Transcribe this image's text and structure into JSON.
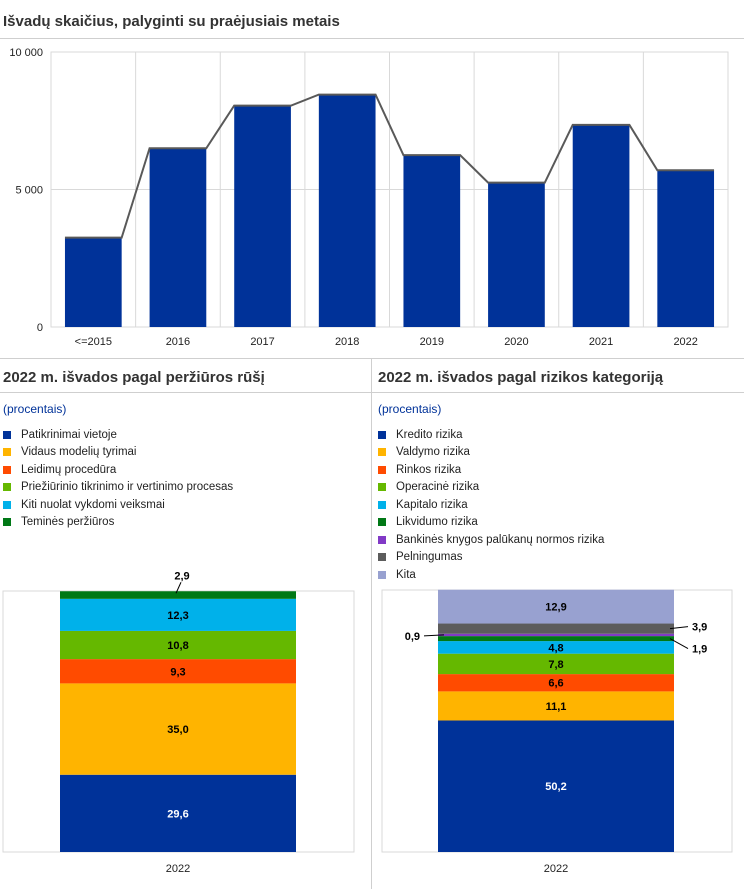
{
  "top_chart": {
    "title": "Išvadų skaičius, palyginti su praėjusiais metais",
    "chart_data": {
      "type": "bar",
      "categories": [
        "<=2015",
        "2016",
        "2017",
        "2018",
        "2019",
        "2020",
        "2021",
        "2022"
      ],
      "values": [
        3250,
        6500,
        8050,
        8450,
        6250,
        5250,
        7350,
        5700
      ],
      "ylim": [
        0,
        10000
      ],
      "yticks": [
        "0",
        "5 000",
        "10 000"
      ],
      "ytick_values": [
        0,
        5000,
        10000
      ],
      "grid": true,
      "bar_color": "#003299",
      "line_color": "#595959"
    }
  },
  "left_chart": {
    "title": "2022 m. išvados pagal peržiūros rūšį",
    "subtitle": "(procentais)",
    "chart_data": {
      "type": "bar",
      "stacked": true,
      "categories": [
        "2022"
      ],
      "ylim": [
        0,
        100
      ],
      "series": [
        {
          "name": "Patikrinimai vietoje",
          "value": 29.6,
          "label": "29,6",
          "color": "#003299"
        },
        {
          "name": "Vidaus modelių tyrimai",
          "value": 35.0,
          "label": "35,0",
          "color": "#FFB400"
        },
        {
          "name": "Leidimų procedūra",
          "value": 9.3,
          "label": "9,3",
          "color": "#FF4B00"
        },
        {
          "name": "Priežiūrinio tikrinimo ir vertinimo procesas",
          "value": 10.8,
          "label": "10,8",
          "color": "#65B800"
        },
        {
          "name": "Kiti nuolat vykdomi veiksmai",
          "value": 12.3,
          "label": "12,3",
          "color": "#00B1EA"
        },
        {
          "name": "Teminės peržiūros",
          "value": 2.9,
          "label": "2,9",
          "color": "#007816"
        }
      ]
    }
  },
  "right_chart": {
    "title": "2022 m. išvados pagal rizikos kategoriją",
    "subtitle": "(procentais)",
    "chart_data": {
      "type": "bar",
      "stacked": true,
      "categories": [
        "2022"
      ],
      "ylim": [
        0,
        100
      ],
      "series": [
        {
          "name": "Kredito rizika",
          "value": 50.2,
          "label": "50,2",
          "color": "#003299"
        },
        {
          "name": "Valdymo rizika",
          "value": 11.1,
          "label": "11,1",
          "color": "#FFB400"
        },
        {
          "name": "Rinkos rizika",
          "value": 6.6,
          "label": "6,6",
          "color": "#FF4B00"
        },
        {
          "name": "Operacinė rizika",
          "value": 7.8,
          "label": "7,8",
          "color": "#65B800"
        },
        {
          "name": "Kapitalo rizika",
          "value": 4.8,
          "label": "4,8",
          "color": "#00B1EA"
        },
        {
          "name": "Likvidumo rizika",
          "value": 1.9,
          "label": "1,9",
          "color": "#007816"
        },
        {
          "name": "Bankinės knygos palūkanų normos rizika",
          "value": 0.9,
          "label": "0,9",
          "color": "#8139C6"
        },
        {
          "name": "Pelningumas",
          "value": 3.9,
          "label": "3,9",
          "color": "#5C5C5C"
        },
        {
          "name": "Kita",
          "value": 12.9,
          "label": "12,9",
          "color": "#98A1D0"
        }
      ]
    }
  }
}
